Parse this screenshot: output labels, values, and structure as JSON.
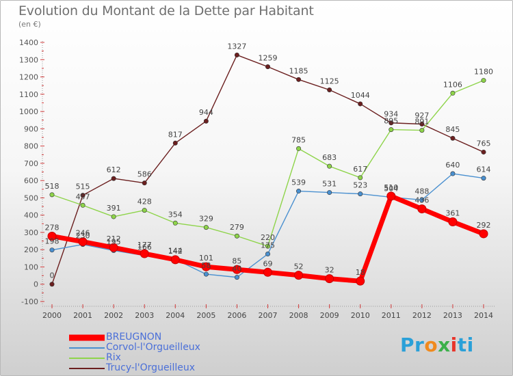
{
  "title": "Evolution du Montant de la Dette par Habitant",
  "unit_label": "(en €)",
  "logo_text": "Proxiti",
  "chart_data": {
    "type": "line",
    "title": "Evolution du Montant de la Dette par Habitant",
    "ylabel": "(en €)",
    "xlabel": "",
    "x": [
      "2000",
      "2001",
      "2002",
      "2003",
      "2004",
      "2005",
      "2006",
      "2007",
      "2008",
      "2009",
      "2010",
      "2011",
      "2012",
      "2013",
      "2014"
    ],
    "ylim": [
      -100,
      1400
    ],
    "yticks": [
      -100,
      0,
      100,
      200,
      300,
      400,
      500,
      600,
      700,
      800,
      900,
      1000,
      1100,
      1200,
      1300,
      1400
    ],
    "grid": false,
    "legend_position": "bottom-left",
    "series": [
      {
        "name": "BREUGNON",
        "color": "#ff0000",
        "values": [
          278,
          246,
          212,
          177,
          142,
          101,
          85,
          69,
          52,
          32,
          18,
          510,
          436,
          361,
          292
        ]
      },
      {
        "name": "Corvol-l'Orgueilleux",
        "color": "#4a90d0",
        "values": [
          198,
          230,
          195,
          166,
          144,
          58,
          40,
          175,
          539,
          531,
          523,
          504,
          488,
          640,
          614
        ]
      },
      {
        "name": "Rix",
        "color": "#8ed44a",
        "values": [
          518,
          457,
          391,
          428,
          354,
          329,
          279,
          220,
          785,
          683,
          617,
          895,
          891,
          1106,
          1180
        ]
      },
      {
        "name": "Trucy-l'Orgueilleux",
        "color": "#6b1f1f",
        "values": [
          0,
          515,
          612,
          586,
          817,
          944,
          1327,
          1259,
          1185,
          1125,
          1044,
          934,
          927,
          845,
          765
        ]
      }
    ]
  }
}
